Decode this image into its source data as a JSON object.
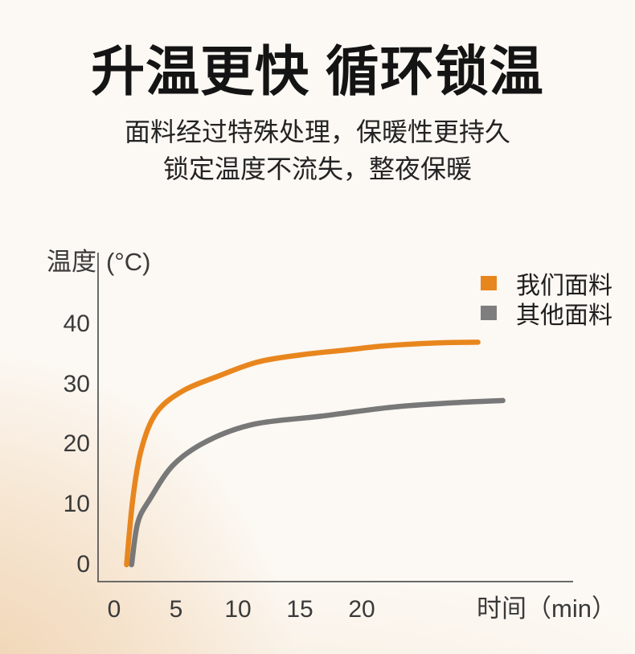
{
  "header": {
    "title": "升温更快 循环锁温",
    "subtitle_line1": "面料经过特殊处理，保暖性更持久",
    "subtitle_line2": "锁定温度不流失，整夜保暖"
  },
  "chart": {
    "y_axis_title": "温度",
    "y_axis_unit": "(°C)",
    "x_axis_title": "时间（min）",
    "y_ticks": [
      "40",
      "30",
      "20",
      "10",
      "0"
    ],
    "x_ticks": [
      "0",
      "5",
      "10",
      "15",
      "20"
    ],
    "axis_color": "#6a6a6a",
    "legend": [
      {
        "label": "我们面料",
        "color": "#E8861E"
      },
      {
        "label": "其他面料",
        "color": "#7E7E7E"
      }
    ]
  },
  "chart_data": {
    "type": "line",
    "title": "升温更快 循环锁温",
    "xlabel": "时间（min）",
    "ylabel": "温度（°C）",
    "xlim": [
      0,
      38
    ],
    "ylim": [
      0,
      45
    ],
    "x_ticks": [
      0,
      5,
      10,
      15,
      20
    ],
    "y_ticks": [
      0,
      10,
      20,
      30,
      40
    ],
    "grid": false,
    "legend_position": "top-right",
    "series": [
      {
        "name": "我们面料",
        "color": "#E8861E",
        "points": [
          [
            1,
            0
          ],
          [
            1.5,
            11
          ],
          [
            2.2,
            19.3
          ],
          [
            3.4,
            25.3
          ],
          [
            5.5,
            28.9
          ],
          [
            8.4,
            31.4
          ],
          [
            11.5,
            33.7
          ],
          [
            15,
            34.9
          ],
          [
            18.6,
            35.7
          ],
          [
            21.8,
            36.4
          ],
          [
            26,
            36.9
          ],
          [
            29.2,
            37
          ]
        ]
      },
      {
        "name": "其他面料",
        "color": "#787878",
        "points": [
          [
            1.4,
            0
          ],
          [
            1.9,
            7
          ],
          [
            2.9,
            11
          ],
          [
            4.8,
            16.7
          ],
          [
            7.6,
            20.7
          ],
          [
            11.3,
            23.4
          ],
          [
            16.6,
            24.7
          ],
          [
            22.3,
            26.2
          ],
          [
            27,
            26.9
          ],
          [
            31.2,
            27.3
          ]
        ]
      }
    ]
  }
}
